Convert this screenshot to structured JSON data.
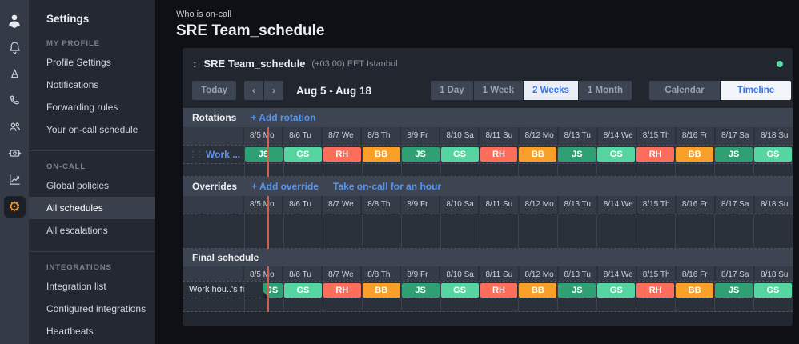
{
  "colors": {
    "JS": "#2ea073",
    "GS": "#55d6a0",
    "RH": "#fc6e5a",
    "BB": "#faa028",
    "now": "#d2604a",
    "dot": "#57d8a5",
    "link": "#5794f2",
    "gear": "#ff9830"
  },
  "nav_rail": {
    "icons": [
      {
        "name": "oncall-logo-icon"
      },
      {
        "name": "bell-icon"
      },
      {
        "name": "escalation-icon"
      },
      {
        "name": "phone-icon"
      },
      {
        "name": "users-icon"
      },
      {
        "name": "integrations-icon"
      },
      {
        "name": "analytics-icon"
      },
      {
        "name": "settings-gear-icon",
        "active": true
      }
    ]
  },
  "sidebar": {
    "title": "Settings",
    "sections": [
      {
        "header": "MY PROFILE",
        "items": [
          {
            "label": "Profile Settings"
          },
          {
            "label": "Notifications"
          },
          {
            "label": "Forwarding rules"
          },
          {
            "label": "Your on-call schedule"
          }
        ]
      },
      {
        "header": "ON-CALL",
        "items": [
          {
            "label": "Global policies"
          },
          {
            "label": "All schedules",
            "active": true
          },
          {
            "label": "All escalations"
          }
        ]
      },
      {
        "header": "INTEGRATIONS",
        "items": [
          {
            "label": "Integration list"
          },
          {
            "label": "Configured integrations"
          },
          {
            "label": "Heartbeats"
          }
        ]
      }
    ]
  },
  "header": {
    "breadcrumb": "Who is on-call",
    "title": "SRE Team_schedule"
  },
  "schedule_panel": {
    "name": "SRE Team_schedule",
    "timezone": "(+03:00) EET Istanbul",
    "drag_icon": "↕",
    "toolbar": {
      "today": "Today",
      "prev": "‹",
      "next": "›",
      "range": "Aug 5 - Aug 18",
      "views": [
        {
          "label": "1 Day"
        },
        {
          "label": "1 Week"
        },
        {
          "label": "2 Weeks",
          "active": true
        },
        {
          "label": "1 Month"
        }
      ],
      "modes": [
        {
          "label": "Calendar"
        },
        {
          "label": "Timeline",
          "active": true
        }
      ]
    },
    "dates": [
      "8/5 Mo",
      "8/6 Tu",
      "8/7 We",
      "8/8 Th",
      "8/9 Fr",
      "8/10 Sa",
      "8/11 Su",
      "8/12 Mo",
      "8/13 Tu",
      "8/14 We",
      "8/15 Th",
      "8/16 Fr",
      "8/17 Sa",
      "8/18 Su"
    ],
    "rotations": {
      "title": "Rotations",
      "add_label": "+ Add rotation",
      "row_label": "Work ...",
      "drag_handle": "⋮⋮",
      "edit_icon": "✎",
      "blocks": [
        {
          "label": "JS",
          "color": "JS"
        },
        {
          "label": "GS",
          "color": "GS"
        },
        {
          "label": "RH",
          "color": "RH"
        },
        {
          "label": "BB",
          "color": "BB"
        },
        {
          "label": "JS",
          "color": "JS"
        },
        {
          "label": "GS",
          "color": "GS"
        },
        {
          "label": "RH",
          "color": "RH"
        },
        {
          "label": "BB",
          "color": "BB"
        },
        {
          "label": "JS",
          "color": "JS"
        },
        {
          "label": "GS",
          "color": "GS"
        },
        {
          "label": "RH",
          "color": "RH"
        },
        {
          "label": "BB",
          "color": "BB"
        },
        {
          "label": "JS",
          "color": "JS"
        },
        {
          "label": "GS",
          "color": "GS"
        }
      ]
    },
    "overrides": {
      "title": "Overrides",
      "add_label": "+ Add override",
      "take_label": "Take on-call for an hour"
    },
    "final": {
      "title": "Final schedule",
      "row_label": "Work hou..'s fi...",
      "partial_first": true,
      "blocks": [
        {
          "label": "JS",
          "color": "JS"
        },
        {
          "label": "GS",
          "color": "GS"
        },
        {
          "label": "RH",
          "color": "RH"
        },
        {
          "label": "BB",
          "color": "BB"
        },
        {
          "label": "JS",
          "color": "JS"
        },
        {
          "label": "GS",
          "color": "GS"
        },
        {
          "label": "RH",
          "color": "RH"
        },
        {
          "label": "BB",
          "color": "BB"
        },
        {
          "label": "JS",
          "color": "JS"
        },
        {
          "label": "GS",
          "color": "GS"
        },
        {
          "label": "RH",
          "color": "RH"
        },
        {
          "label": "BB",
          "color": "BB"
        },
        {
          "label": "JS",
          "color": "JS"
        },
        {
          "label": "GS",
          "color": "GS"
        }
      ]
    }
  }
}
